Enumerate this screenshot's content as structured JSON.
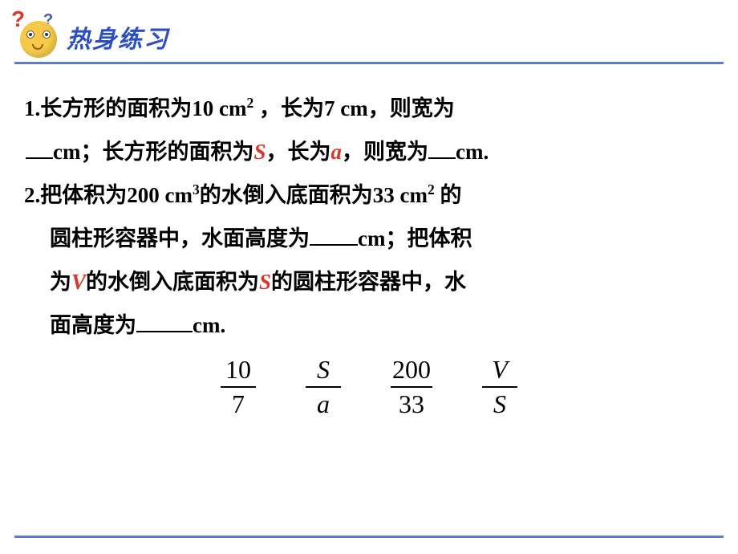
{
  "header": {
    "title": "热身练习",
    "title_color": "#2b4fc0",
    "qmark_red": "?",
    "qmark_blue": "?",
    "underline_color": "#5a7ad4"
  },
  "content": {
    "font_color": "#000000",
    "highlight_color": "#d9372b",
    "q1": {
      "prefix": "1.长方形的面积为10 cm",
      "sup1": "2",
      "mid1": " ，长为7 cm，则宽为",
      "line2a": "cm；长方形的面积为",
      "varS": "S",
      "line2b": "，长为",
      "vara": "a",
      "line2c": "，则宽为",
      "line2d": "cm."
    },
    "q2": {
      "l1a": "2.把体积为200 cm",
      "sup3": "3",
      "l1b": "的水倒入底面积为33 cm",
      "sup2": "2",
      "l1c": " 的",
      "l2a": "圆柱形容器中，水面高度为",
      "l2b": "cm；把体积",
      "l3a": "为",
      "varV": "V",
      "l3b": "的水倒入底面积为",
      "varS": "S",
      "l3c": "的圆柱形容器中，水",
      "l4a": "面高度为",
      "l4b": "cm."
    }
  },
  "fractions": {
    "font_family": "Times New Roman",
    "f1": {
      "num": "10",
      "den": "7"
    },
    "f2": {
      "num": "S",
      "den": "a",
      "italic": true
    },
    "f3": {
      "num": "200",
      "den": "33"
    },
    "f4": {
      "num": "V",
      "den": "S",
      "italic": true
    }
  }
}
